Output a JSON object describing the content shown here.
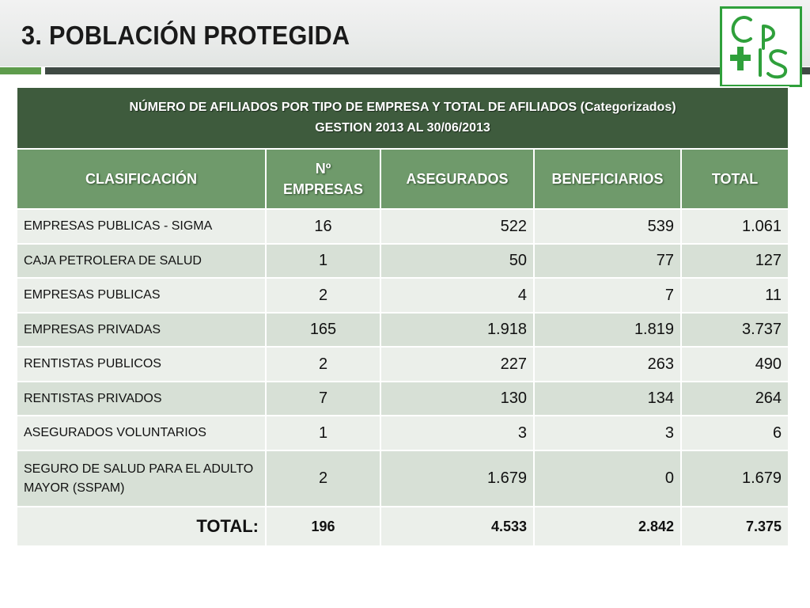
{
  "slide": {
    "title": "3. POBLACIÓN PROTEGIDA"
  },
  "logo": {
    "name": "cps-logo-icon",
    "color": "#2fa03b"
  },
  "table": {
    "caption_line1": "NÚMERO DE AFILIADOS POR TIPO DE EMPRESA Y TOTAL DE AFILIADOS (Categorizados)",
    "caption_line2": "GESTION 2013 AL 30/06/2013",
    "headers": {
      "clasificacion": "CLASIFICACIÓN",
      "empresas_line1": "Nº",
      "empresas_line2": "EMPRESAS",
      "asegurados": "ASEGURADOS",
      "beneficiarios": "BENEFICIARIOS",
      "total": "TOTAL"
    },
    "rows": [
      {
        "clasificacion": "EMPRESAS PUBLICAS - SIGMA",
        "empresas": "16",
        "asegurados": "522",
        "beneficiarios": "539",
        "total": "1.061"
      },
      {
        "clasificacion": "CAJA PETROLERA DE SALUD",
        "empresas": "1",
        "asegurados": "50",
        "beneficiarios": "77",
        "total": "127"
      },
      {
        "clasificacion": "EMPRESAS PUBLICAS",
        "empresas": "2",
        "asegurados": "4",
        "beneficiarios": "7",
        "total": "11"
      },
      {
        "clasificacion": "EMPRESAS PRIVADAS",
        "empresas": "165",
        "asegurados": "1.918",
        "beneficiarios": "1.819",
        "total": "3.737"
      },
      {
        "clasificacion": "RENTISTAS PUBLICOS",
        "empresas": "2",
        "asegurados": "227",
        "beneficiarios": "263",
        "total": "490"
      },
      {
        "clasificacion": "RENTISTAS PRIVADOS",
        "empresas": "7",
        "asegurados": "130",
        "beneficiarios": "134",
        "total": "264"
      },
      {
        "clasificacion": "ASEGURADOS VOLUNTARIOS",
        "empresas": "1",
        "asegurados": "3",
        "beneficiarios": "3",
        "total": "6"
      },
      {
        "clasificacion": "SEGURO DE SALUD PARA EL ADULTO MAYOR (SSPAM)",
        "empresas": "2",
        "asegurados": "1.679",
        "beneficiarios": "0",
        "total": "1.679"
      }
    ],
    "totals": {
      "label": "TOTAL:",
      "empresas": "196",
      "asegurados": "4.533",
      "beneficiarios": "2.842",
      "total": "7.375"
    }
  }
}
